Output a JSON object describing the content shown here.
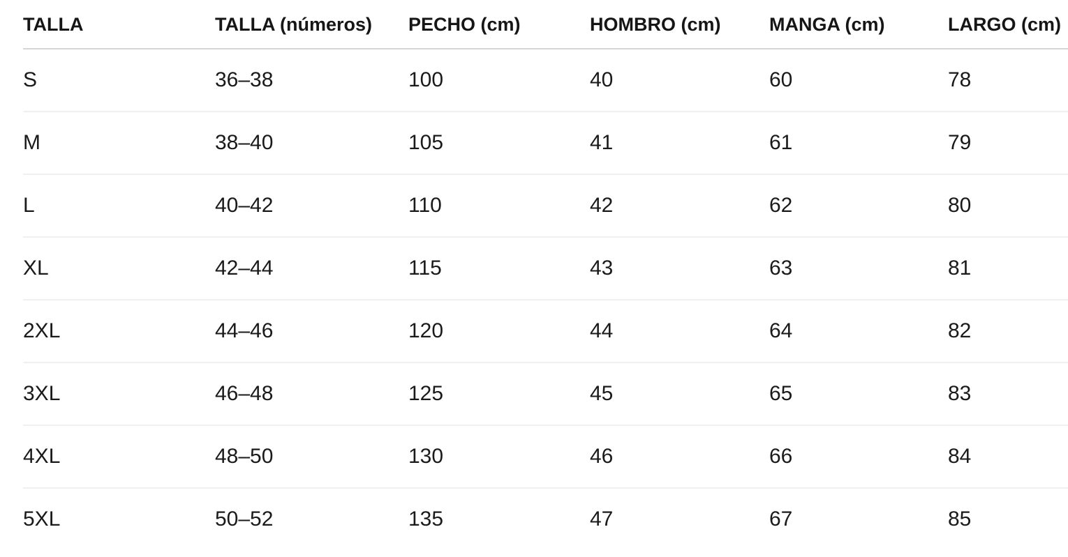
{
  "chart_data": {
    "type": "table",
    "title": "",
    "columns": [
      {
        "key": "talla",
        "label": "TALLA"
      },
      {
        "key": "talla_numeros",
        "label": "TALLA (números)"
      },
      {
        "key": "pecho",
        "label": "PECHO (cm)"
      },
      {
        "key": "hombro",
        "label": "HOMBRO (cm)"
      },
      {
        "key": "manga",
        "label": "MANGA (cm)"
      },
      {
        "key": "largo",
        "label": "LARGO (cm)"
      }
    ],
    "rows": [
      [
        "S",
        "36–38",
        "100",
        "40",
        "60",
        "78"
      ],
      [
        "M",
        "38–40",
        "105",
        "41",
        "61",
        "79"
      ],
      [
        "L",
        "40–42",
        "110",
        "42",
        "62",
        "80"
      ],
      [
        "XL",
        "42–44",
        "115",
        "43",
        "63",
        "81"
      ],
      [
        "2XL",
        "44–46",
        "120",
        "44",
        "64",
        "82"
      ],
      [
        "3XL",
        "46–48",
        "125",
        "45",
        "65",
        "83"
      ],
      [
        "4XL",
        "48–50",
        "130",
        "46",
        "66",
        "84"
      ],
      [
        "5XL",
        "50–52",
        "135",
        "47",
        "67",
        "85"
      ]
    ]
  },
  "colors": {
    "background": "#ffffff",
    "text": "#1a1a1a",
    "header_text": "#161616",
    "header_border": "#d6d6d6",
    "row_border": "#f0f0f0"
  }
}
